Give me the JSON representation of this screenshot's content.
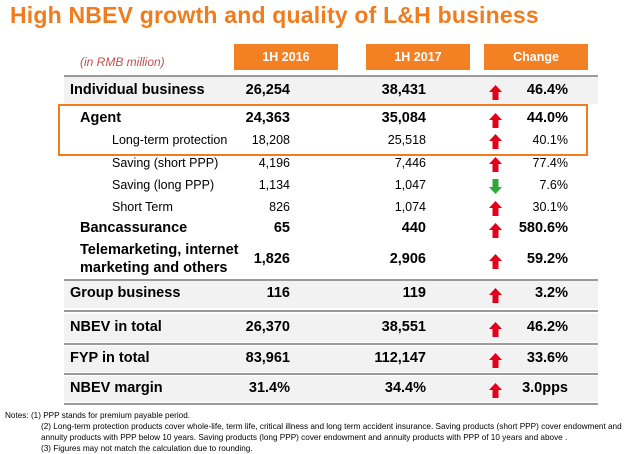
{
  "title": "High NBEV growth and quality of L&H business",
  "unit_label": "(in RMB million)",
  "columns": [
    "1H 2016",
    "1H 2017",
    "Change"
  ],
  "rows": [
    {
      "label": "Individual business",
      "v2016": "26,254",
      "v2017": "38,431",
      "change": "46.4%",
      "direction": "up"
    },
    {
      "label": "Agent",
      "v2016": "24,363",
      "v2017": "35,084",
      "change": "44.0%",
      "direction": "up"
    },
    {
      "label": "Long-term protection",
      "v2016": "18,208",
      "v2017": "25,518",
      "change": "40.1%",
      "direction": "up"
    },
    {
      "label": "Saving (short PPP)",
      "v2016": "4,196",
      "v2017": "7,446",
      "change": "77.4%",
      "direction": "up"
    },
    {
      "label": "Saving (long PPP)",
      "v2016": "1,134",
      "v2017": "1,047",
      "change": "7.6%",
      "direction": "down"
    },
    {
      "label": "Short Term",
      "v2016": "826",
      "v2017": "1,074",
      "change": "30.1%",
      "direction": "up"
    },
    {
      "label": "Bancassurance",
      "v2016": "65",
      "v2017": "440",
      "change": "580.6%",
      "direction": "up"
    },
    {
      "label_line1": "Telemarketing, internet",
      "label_line2": "marketing and others",
      "v2016": "1,826",
      "v2017": "2,906",
      "change": "59.2%",
      "direction": "up"
    },
    {
      "label": "Group business",
      "v2016": "116",
      "v2017": "119",
      "change": "3.2%",
      "direction": "up"
    },
    {
      "label": "NBEV in total",
      "v2016": "26,370",
      "v2017": "38,551",
      "change": "46.2%",
      "direction": "up"
    },
    {
      "label": "FYP in total",
      "v2016": "83,961",
      "v2017": "112,147",
      "change": "33.6%",
      "direction": "up"
    },
    {
      "label": "NBEV margin",
      "v2016": "31.4%",
      "v2017": "34.4%",
      "change": "3.0pps",
      "direction": "up"
    }
  ],
  "notes": [
    "Notes: (1) PPP stands for premium payable period.",
    "(2) Long-term protection products cover whole-life, term life, critical illness and long term accident insurance. Saving products (short PPP) cover endowment and",
    "annuity products with PPP below 10 years. Saving products (long PPP) cover endowment and annuity products with PPP of 10 years and above .",
    "(3) Figures may not match the calculation due to rounding."
  ],
  "colors": {
    "accent": "#f48024",
    "up": "#e3001b",
    "down": "#2ea836"
  }
}
